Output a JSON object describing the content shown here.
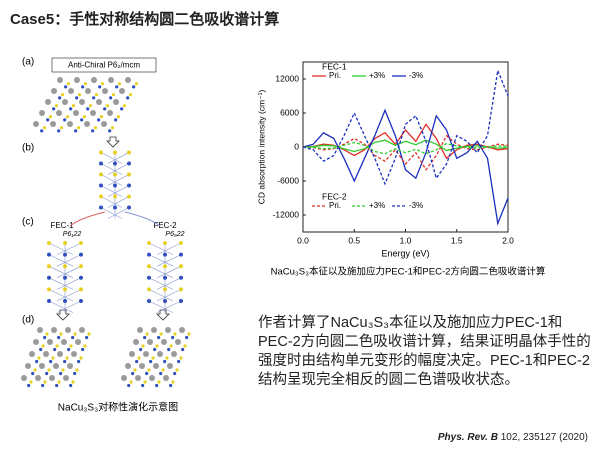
{
  "slide": {
    "title": "Case5：手性对称结构圆二色吸收谱计算"
  },
  "figure": {
    "panel_labels": [
      "(a)",
      "(b)",
      "(c)",
      "(d)"
    ],
    "group_label": "Anti-Chiral P6₂/mcm",
    "fec1": "FEC-1",
    "fec1_group": "P6₁22",
    "fec2": "FEC-2",
    "fec2_group": "P6₅22",
    "caption": "NaCu₃S₃对称性演化示意图"
  },
  "chart_data": {
    "type": "line",
    "xlabel": "Energy (eV)",
    "ylabel": "CD absorption intensity (cm⁻¹)",
    "x": [
      0,
      0.1,
      0.2,
      0.3,
      0.4,
      0.5,
      0.6,
      0.7,
      0.8,
      0.9,
      1.0,
      1.1,
      1.2,
      1.3,
      1.4,
      1.5,
      1.6,
      1.7,
      1.8,
      1.9,
      2.0
    ],
    "xlim": [
      0,
      2.0
    ],
    "xticks": [
      {
        "value": 0,
        "label": "0.0"
      },
      0.5,
      {
        "value": 1,
        "label": "1.0"
      },
      1.5,
      {
        "value": 2,
        "label": "2.0"
      }
    ],
    "ylim": [
      -15000,
      15000
    ],
    "yticks": [
      -12000,
      -6000,
      0,
      6000,
      12000
    ],
    "grid": false,
    "legend_titles": [
      "FEC-1",
      "FEC-2"
    ],
    "series": [
      {
        "name": "Pri.",
        "color": "#e0302a",
        "linestyle": "solid",
        "values": [
          0,
          100,
          500,
          300,
          -500,
          -1500,
          -500,
          1500,
          2500,
          500,
          3000,
          1000,
          4000,
          1500,
          -2000,
          -500,
          300,
          500,
          0,
          -500,
          -300
        ]
      },
      {
        "name": "+3%",
        "color": "#2ecc2e",
        "linestyle": "solid",
        "values": [
          0,
          50,
          300,
          200,
          -300,
          -800,
          -300,
          800,
          1200,
          300,
          1000,
          400,
          1200,
          500,
          -600,
          -200,
          100,
          200,
          0,
          -200,
          -100
        ]
      },
      {
        "name": "-3%",
        "color": "#1a2fbf",
        "linestyle": "solid",
        "values": [
          0,
          500,
          2500,
          1500,
          -2000,
          -6000,
          -2000,
          2000,
          6500,
          2000,
          -4000,
          -5500,
          -1000,
          5500,
          3000,
          -2000,
          -1000,
          1000,
          -2000,
          -13500,
          -9000
        ]
      },
      {
        "name": "Pri.",
        "color": "#e0302a",
        "linestyle": "dashed",
        "values": [
          0,
          -100,
          -500,
          -300,
          500,
          1500,
          500,
          -1500,
          -2500,
          -500,
          -3000,
          -1000,
          -4000,
          -1500,
          2000,
          500,
          -300,
          -500,
          0,
          500,
          300
        ]
      },
      {
        "name": "+3%",
        "color": "#2ecc2e",
        "linestyle": "dashed",
        "values": [
          0,
          -50,
          -300,
          -200,
          300,
          800,
          300,
          -800,
          -1200,
          -300,
          -1000,
          -400,
          -1200,
          -500,
          600,
          200,
          -100,
          -200,
          0,
          200,
          100
        ]
      },
      {
        "name": "-3%",
        "color": "#1a2fbf",
        "linestyle": "dashed",
        "values": [
          0,
          -500,
          -2500,
          -1500,
          2000,
          6000,
          2000,
          -2000,
          -6500,
          -2000,
          4000,
          5500,
          1000,
          -5500,
          -3000,
          2000,
          1000,
          -1000,
          2000,
          13500,
          9000
        ]
      }
    ]
  },
  "chart_caption": "NaCu₃S₃本征以及施加应力PEC-1和PEC-2方向圆二色吸收谱计算",
  "body": "作者计算了NaCu₃S₃本征以及施加应力PEC-1和PEC-2方向圆二色吸收谱计算，结果证明晶体手性的强度时由结构单元变形的幅度决定。PEC-1和PEC-2结构呈现完全相反的圆二色谱吸收状态。",
  "citation": {
    "journal": "Phys. Rev. B",
    "rest": "102, 235127 (2020)"
  }
}
